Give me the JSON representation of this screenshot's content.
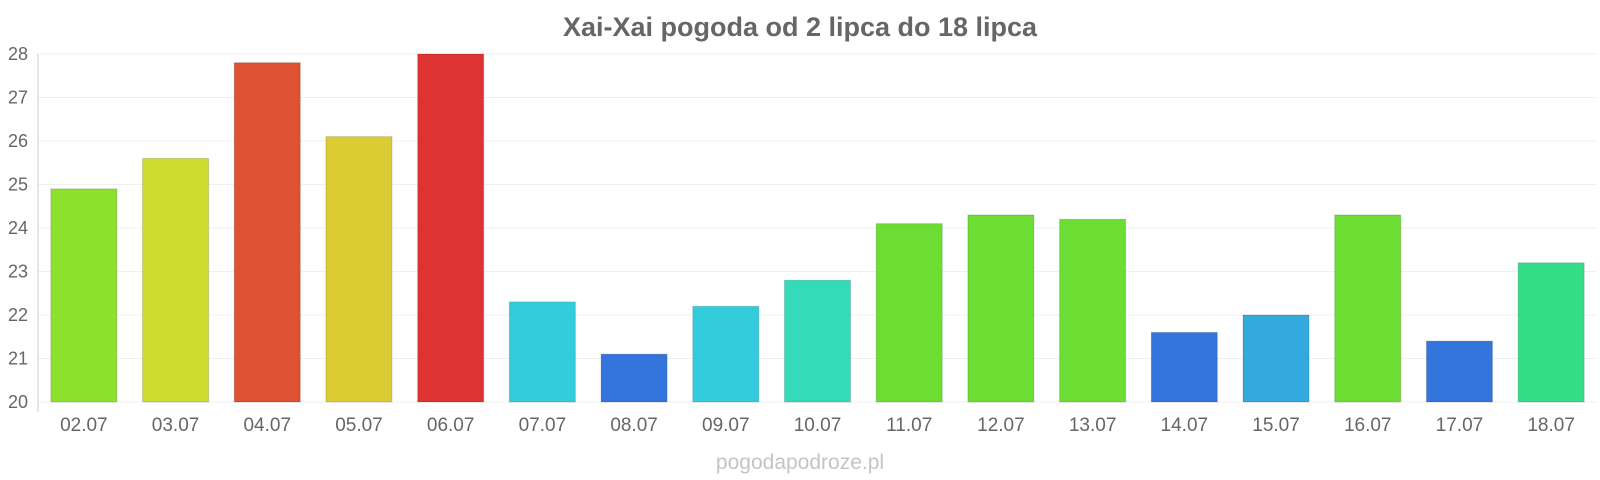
{
  "chart_data": {
    "type": "bar",
    "title": "Xai-Xai pogoda od 2 lipca do 18 lipca",
    "xlabel": "",
    "ylabel": "",
    "ylim": [
      20,
      28
    ],
    "yticks": [
      "20",
      "21",
      "22",
      "23",
      "24",
      "25",
      "26",
      "27",
      "28"
    ],
    "grid": true,
    "categories": [
      "02.07",
      "03.07",
      "04.07",
      "05.07",
      "06.07",
      "07.07",
      "08.07",
      "09.07",
      "10.07",
      "11.07",
      "12.07",
      "13.07",
      "14.07",
      "15.07",
      "16.07",
      "17.07",
      "18.07"
    ],
    "values": [
      24.9,
      25.6,
      27.8,
      26.1,
      28.0,
      22.3,
      21.1,
      22.2,
      22.8,
      24.1,
      24.3,
      24.2,
      21.6,
      22.0,
      24.3,
      21.4,
      23.2
    ],
    "colors": [
      "#8de02c",
      "#ccdd30",
      "#df5133",
      "#dccc33",
      "#dd3333",
      "#33ccdd",
      "#3375dd",
      "#33ccdd",
      "#33dbba",
      "#6bdd33",
      "#6bdd33",
      "#6bdd33",
      "#3375dd",
      "#33a9dd",
      "#6bdd33",
      "#3375dd",
      "#33dd88"
    ]
  },
  "watermark": "pogodapodroze.pl"
}
